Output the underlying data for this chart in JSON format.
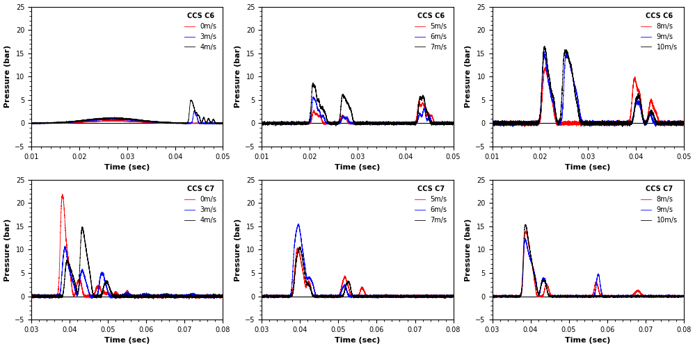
{
  "plots": [
    {
      "title": "CCS C6",
      "legend_labels": [
        "0m/s",
        "3m/s",
        "4m/s"
      ],
      "colors": [
        "red",
        "blue",
        "black"
      ],
      "xlim": [
        0.01,
        0.05
      ],
      "ylim": [
        -5,
        25
      ],
      "xlabel": "Time (sec)",
      "ylabel": "Pressure (bar)",
      "row": 0,
      "col": 0
    },
    {
      "title": "CCS C6",
      "legend_labels": [
        "5m/s",
        "6m/s",
        "7m/s"
      ],
      "colors": [
        "red",
        "blue",
        "black"
      ],
      "xlim": [
        0.01,
        0.05
      ],
      "ylim": [
        -5,
        25
      ],
      "xlabel": "Time (sec)",
      "ylabel": "Pressure (bar)",
      "row": 0,
      "col": 1
    },
    {
      "title": "CCS C6",
      "legend_labels": [
        "8m/s",
        "9m/s",
        "10m/s"
      ],
      "colors": [
        "red",
        "blue",
        "black"
      ],
      "xlim": [
        0.01,
        0.05
      ],
      "ylim": [
        -5,
        25
      ],
      "xlabel": "Time (sec)",
      "ylabel": "Pressure (bar)",
      "row": 0,
      "col": 2
    },
    {
      "title": "CCS C7",
      "legend_labels": [
        "0m/s",
        "3m/s",
        "4m/s"
      ],
      "colors": [
        "red",
        "blue",
        "black"
      ],
      "xlim": [
        0.03,
        0.08
      ],
      "ylim": [
        -5,
        25
      ],
      "xlabel": "Time (sec)",
      "ylabel": "Pressure (bar)",
      "row": 1,
      "col": 0
    },
    {
      "title": "CCS C7",
      "legend_labels": [
        "5m/s",
        "6m/s",
        "7m/s"
      ],
      "colors": [
        "red",
        "blue",
        "black"
      ],
      "xlim": [
        0.03,
        0.08
      ],
      "ylim": [
        -5,
        25
      ],
      "xlabel": "Time (sec)",
      "ylabel": "Pressure (bar)",
      "row": 1,
      "col": 1
    },
    {
      "title": "CCS C7",
      "legend_labels": [
        "8m/s",
        "9m/s",
        "10m/s"
      ],
      "colors": [
        "red",
        "blue",
        "black"
      ],
      "xlim": [
        0.03,
        0.08
      ],
      "ylim": [
        -5,
        25
      ],
      "xlabel": "Time (sec)",
      "ylabel": "Pressure (bar)",
      "row": 1,
      "col": 2
    }
  ],
  "bg_color": "#ffffff",
  "tick_label_fontsize": 7,
  "axis_label_fontsize": 8,
  "legend_fontsize": 7,
  "title_fontsize": 7
}
